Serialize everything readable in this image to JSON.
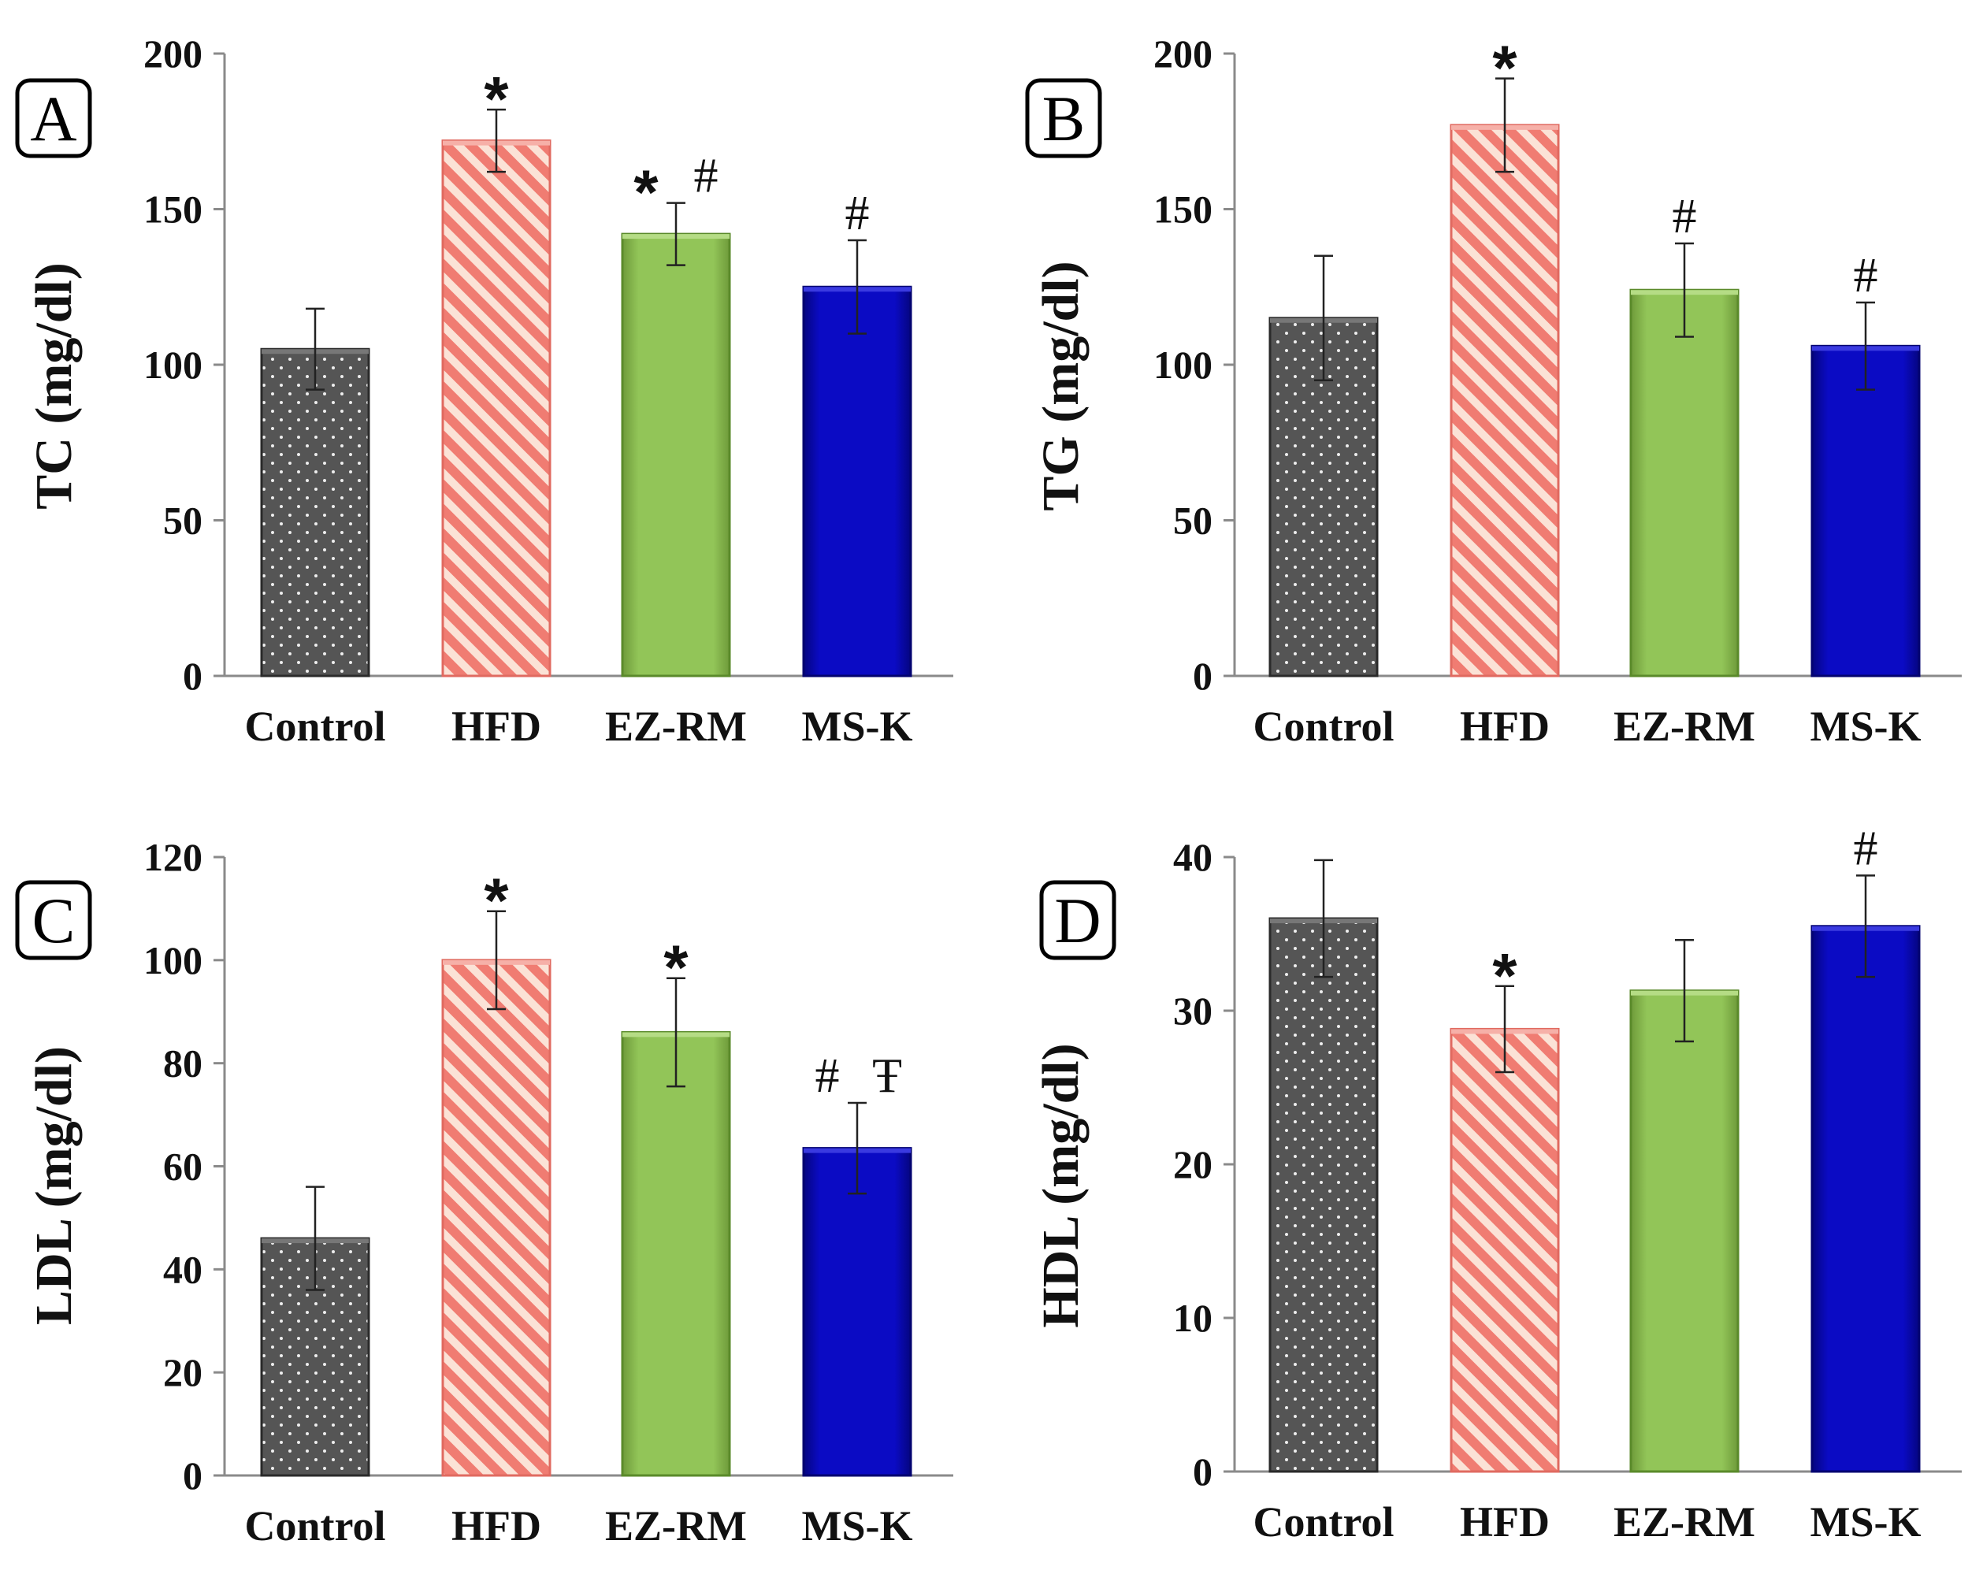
{
  "chart_data": [
    {
      "panel": "A",
      "type": "bar",
      "ylabel": "TC (mg/dl)",
      "ylim": [
        0,
        200
      ],
      "yticks": [
        "0",
        "50",
        "100",
        "150",
        "200"
      ],
      "categories": [
        "Control",
        "HFD",
        "EZ-RM",
        "MS-K"
      ],
      "values": [
        105,
        172,
        142,
        125
      ],
      "errors": [
        13,
        10,
        10,
        15
      ],
      "annotations": [
        [],
        [
          "*"
        ],
        [
          "*",
          "#"
        ],
        [
          "#"
        ]
      ]
    },
    {
      "panel": "B",
      "type": "bar",
      "ylabel": "TG (mg/dl)",
      "ylim": [
        0,
        200
      ],
      "yticks": [
        "0",
        "50",
        "100",
        "150",
        "200"
      ],
      "categories": [
        "Control",
        "HFD",
        "EZ-RM",
        "MS-K"
      ],
      "values": [
        115,
        177,
        124,
        106
      ],
      "errors": [
        20,
        15,
        15,
        14
      ],
      "annotations": [
        [],
        [
          "*"
        ],
        [
          "#"
        ],
        [
          "#"
        ]
      ]
    },
    {
      "panel": "C",
      "type": "bar",
      "ylabel": "LDL (mg/dl)",
      "ylim": [
        0,
        120
      ],
      "yticks": [
        "0",
        "20",
        "40",
        "60",
        "80",
        "100",
        "120"
      ],
      "categories": [
        "Control",
        "HFD",
        "EZ-RM",
        "MS-K"
      ],
      "values": [
        46,
        100,
        86,
        63.5
      ],
      "errors": [
        10,
        9.5,
        10.5,
        8.8
      ],
      "annotations": [
        [],
        [
          "*"
        ],
        [
          "*"
        ],
        [
          "#",
          "Ŧ"
        ]
      ]
    },
    {
      "panel": "D",
      "type": "bar",
      "ylabel": "HDL (mg/dl)",
      "ylim": [
        0,
        40
      ],
      "yticks": [
        "0",
        "10",
        "20",
        "30",
        "40"
      ],
      "categories": [
        "Control",
        "HFD",
        "EZ-RM",
        "MS-K"
      ],
      "values": [
        36,
        28.8,
        31.3,
        35.5
      ],
      "errors": [
        3.8,
        2.8,
        3.3,
        3.3
      ],
      "annotations": [
        [],
        [
          "*"
        ],
        [],
        [
          "#"
        ]
      ]
    }
  ],
  "colors": {
    "control": "#555555",
    "hfd_stripe": "#f07c72",
    "ezrm": "#92c558",
    "msk": "#0b0bc4"
  },
  "icons": {
    "control_fill": "dotted-pattern",
    "hfd_fill": "diagonal-stripe-pattern"
  }
}
